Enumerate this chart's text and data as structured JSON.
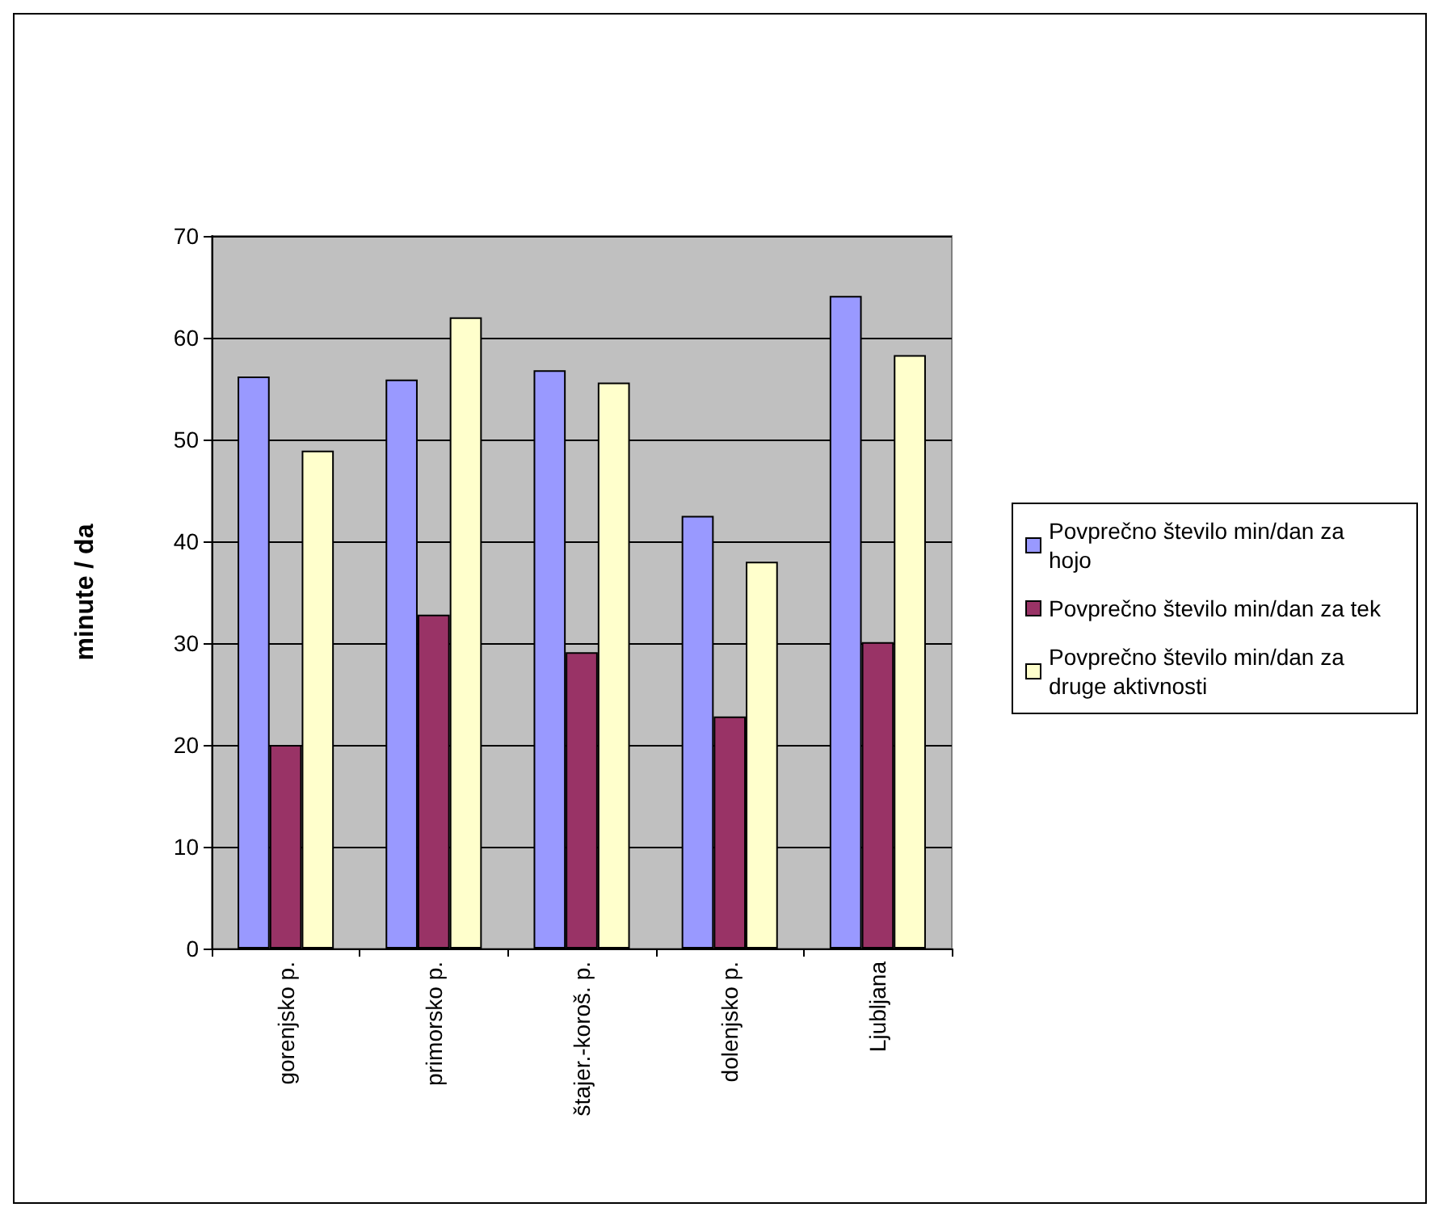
{
  "chart_data": {
    "type": "bar",
    "ylabel": "minute / da",
    "categories": [
      "gorenjsko p.",
      "primorsko p.",
      "štajer.-koroš. p.",
      "dolenjsko p.",
      "Ljubljana"
    ],
    "series": [
      {
        "name": "Povprečno število min/dan za hojo",
        "color": "#9999ff",
        "values": [
          56.2,
          55.9,
          56.8,
          42.5,
          64.1
        ]
      },
      {
        "name": "Povprečno število min/dan za tek",
        "color": "#993366",
        "values": [
          20.0,
          32.8,
          29.1,
          22.8,
          30.1
        ]
      },
      {
        "name": "Povprečno število min/dan za druge aktivnosti",
        "color": "#ffffcc",
        "values": [
          48.9,
          62.0,
          55.6,
          38.0,
          58.3
        ]
      }
    ],
    "ylim": [
      0,
      70
    ],
    "yticks": [
      0,
      10,
      20,
      30,
      40,
      50,
      60,
      70
    ],
    "grid": "y",
    "legend": "right"
  }
}
